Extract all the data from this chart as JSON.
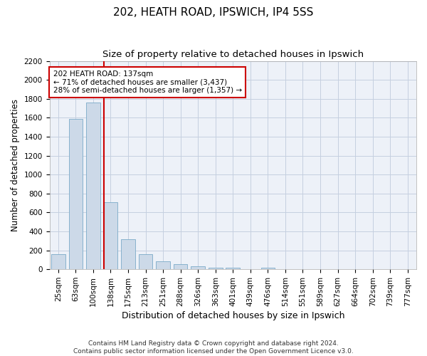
{
  "title1": "202, HEATH ROAD, IPSWICH, IP4 5SS",
  "title2": "Size of property relative to detached houses in Ipswich",
  "xlabel": "Distribution of detached houses by size in Ipswich",
  "ylabel": "Number of detached properties",
  "categories": [
    "25sqm",
    "63sqm",
    "100sqm",
    "138sqm",
    "175sqm",
    "213sqm",
    "251sqm",
    "288sqm",
    "326sqm",
    "363sqm",
    "401sqm",
    "439sqm",
    "476sqm",
    "514sqm",
    "551sqm",
    "589sqm",
    "627sqm",
    "664sqm",
    "702sqm",
    "739sqm",
    "777sqm"
  ],
  "values": [
    160,
    1590,
    1760,
    710,
    315,
    160,
    85,
    55,
    30,
    20,
    15,
    0,
    15,
    0,
    0,
    0,
    0,
    0,
    0,
    0,
    0
  ],
  "bar_color": "#ccd9e8",
  "bar_edge_color": "#7aaac8",
  "grid_color": "#c5cfe0",
  "background_color": "#edf1f8",
  "vline_x_index": 3,
  "vline_color": "#cc0000",
  "annotation_line1": "202 HEATH ROAD: 137sqm",
  "annotation_line2": "← 71% of detached houses are smaller (3,437)",
  "annotation_line3": "28% of semi-detached houses are larger (1,357) →",
  "annotation_box_color": "#ffffff",
  "annotation_box_edge": "#cc0000",
  "ylim": [
    0,
    2200
  ],
  "yticks": [
    0,
    200,
    400,
    600,
    800,
    1000,
    1200,
    1400,
    1600,
    1800,
    2000,
    2200
  ],
  "footer": "Contains HM Land Registry data © Crown copyright and database right 2024.\nContains public sector information licensed under the Open Government Licence v3.0.",
  "title1_fontsize": 11,
  "title2_fontsize": 9.5,
  "xlabel_fontsize": 9,
  "ylabel_fontsize": 8.5,
  "tick_fontsize": 7.5,
  "annotation_fontsize": 7.5,
  "footer_fontsize": 6.5
}
